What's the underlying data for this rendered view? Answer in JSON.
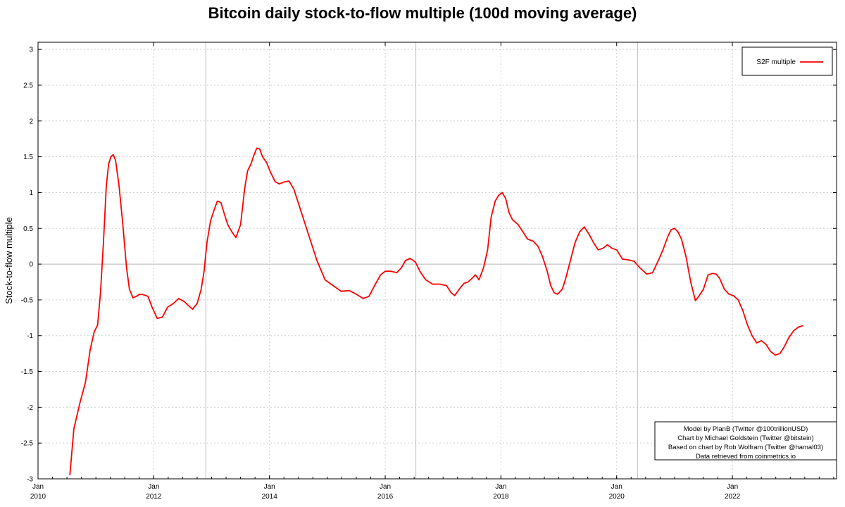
{
  "chart_data": {
    "type": "line",
    "title": "Bitcoin daily stock-to-flow multiple (100d moving average)",
    "xlabel": "",
    "ylabel": "Stock-to-flow multiple",
    "xlim": [
      2010.0,
      2023.8
    ],
    "ylim": [
      -3,
      3.1
    ],
    "grid": true,
    "legend_position": "top-right",
    "x_ticks": [
      {
        "x": 2010,
        "label_top": "Jan",
        "label_bottom": "2010"
      },
      {
        "x": 2012,
        "label_top": "Jan",
        "label_bottom": "2012"
      },
      {
        "x": 2014,
        "label_top": "Jan",
        "label_bottom": "2014"
      },
      {
        "x": 2016,
        "label_top": "Jan",
        "label_bottom": "2016"
      },
      {
        "x": 2018,
        "label_top": "Jan",
        "label_bottom": "2018"
      },
      {
        "x": 2020,
        "label_top": "Jan",
        "label_bottom": "2020"
      },
      {
        "x": 2022,
        "label_top": "Jan",
        "label_bottom": "2022"
      }
    ],
    "y_ticks": [
      {
        "value": 3,
        "label": "3"
      },
      {
        "value": 2.5,
        "label": "2.5"
      },
      {
        "value": 2,
        "label": "2"
      },
      {
        "value": 1.5,
        "label": "1.5"
      },
      {
        "value": 1,
        "label": "1"
      },
      {
        "value": 0.5,
        "label": "0.5"
      },
      {
        "value": 0,
        "label": "0"
      },
      {
        "value": -0.5,
        "label": "-0.5"
      },
      {
        "value": -1,
        "label": "-1"
      },
      {
        "value": -1.5,
        "label": "-1.5"
      },
      {
        "value": -2,
        "label": "-2"
      },
      {
        "value": -2.5,
        "label": "-2.5"
      },
      {
        "value": -3,
        "label": "-3"
      }
    ],
    "halving_lines": [
      2012.9,
      2016.53,
      2020.36
    ],
    "series": [
      {
        "name": "S2F multiple",
        "color": "#ff0000",
        "x": [
          2010.55,
          2010.62,
          2010.72,
          2010.82,
          2010.9,
          2010.97,
          2011.03,
          2011.08,
          2011.13,
          2011.18,
          2011.22,
          2011.26,
          2011.3,
          2011.34,
          2011.4,
          2011.46,
          2011.53,
          2011.58,
          2011.64,
          2011.7,
          2011.76,
          2011.83,
          2011.9,
          2011.97,
          2012.06,
          2012.15,
          2012.24,
          2012.34,
          2012.43,
          2012.52,
          2012.6,
          2012.67,
          2012.75,
          2012.82,
          2012.87,
          2012.92,
          2012.98,
          2013.04,
          2013.1,
          2013.16,
          2013.22,
          2013.28,
          2013.35,
          2013.42,
          2013.5,
          2013.57,
          2013.62,
          2013.68,
          2013.73,
          2013.78,
          2013.83,
          2013.88,
          2013.95,
          2014.02,
          2014.1,
          2014.17,
          2014.26,
          2014.34,
          2014.42,
          2014.5,
          2014.6,
          2014.7,
          2014.82,
          2014.96,
          2015.1,
          2015.24,
          2015.38,
          2015.5,
          2015.62,
          2015.72,
          2015.83,
          2015.92,
          2016.0,
          2016.1,
          2016.2,
          2016.28,
          2016.35,
          2016.43,
          2016.52,
          2016.6,
          2016.7,
          2016.82,
          2016.94,
          2017.06,
          2017.14,
          2017.2,
          2017.28,
          2017.36,
          2017.43,
          2017.5,
          2017.56,
          2017.62,
          2017.7,
          2017.77,
          2017.83,
          2017.9,
          2017.96,
          2018.02,
          2018.08,
          2018.14,
          2018.2,
          2018.3,
          2018.38,
          2018.46,
          2018.56,
          2018.64,
          2018.72,
          2018.8,
          2018.86,
          2018.92,
          2018.98,
          2019.06,
          2019.12,
          2019.2,
          2019.28,
          2019.36,
          2019.44,
          2019.52,
          2019.6,
          2019.68,
          2019.76,
          2019.84,
          2019.92,
          2020.0,
          2020.1,
          2020.2,
          2020.3,
          2020.4,
          2020.52,
          2020.62,
          2020.72,
          2020.8,
          2020.88,
          2020.94,
          2021.0,
          2021.06,
          2021.12,
          2021.2,
          2021.28,
          2021.36,
          2021.42,
          2021.5,
          2021.58,
          2021.66,
          2021.72,
          2021.78,
          2021.86,
          2021.94,
          2022.02,
          2022.1,
          2022.18,
          2022.26,
          2022.34,
          2022.42,
          2022.5,
          2022.58,
          2022.66,
          2022.74,
          2022.82,
          2022.9,
          2022.98,
          2023.06,
          2023.14,
          2023.22
        ],
        "y": [
          -2.95,
          -2.3,
          -1.95,
          -1.65,
          -1.2,
          -0.95,
          -0.85,
          -0.4,
          0.3,
          1.1,
          1.4,
          1.5,
          1.53,
          1.45,
          1.1,
          0.6,
          -0.05,
          -0.35,
          -0.47,
          -0.45,
          -0.42,
          -0.43,
          -0.45,
          -0.6,
          -0.76,
          -0.74,
          -0.6,
          -0.55,
          -0.48,
          -0.52,
          -0.58,
          -0.63,
          -0.55,
          -0.35,
          -0.1,
          0.3,
          0.6,
          0.75,
          0.88,
          0.86,
          0.7,
          0.55,
          0.45,
          0.37,
          0.55,
          1.05,
          1.3,
          1.4,
          1.52,
          1.62,
          1.61,
          1.5,
          1.42,
          1.28,
          1.15,
          1.12,
          1.15,
          1.16,
          1.05,
          0.85,
          0.6,
          0.35,
          0.05,
          -0.22,
          -0.3,
          -0.38,
          -0.37,
          -0.42,
          -0.48,
          -0.45,
          -0.28,
          -0.15,
          -0.1,
          -0.1,
          -0.12,
          -0.05,
          0.05,
          0.08,
          0.03,
          -0.1,
          -0.22,
          -0.28,
          -0.28,
          -0.3,
          -0.4,
          -0.44,
          -0.35,
          -0.27,
          -0.25,
          -0.2,
          -0.15,
          -0.22,
          -0.05,
          0.2,
          0.65,
          0.88,
          0.96,
          1.0,
          0.92,
          0.72,
          0.62,
          0.55,
          0.45,
          0.35,
          0.32,
          0.25,
          0.1,
          -0.1,
          -0.3,
          -0.4,
          -0.42,
          -0.35,
          -0.2,
          0.05,
          0.3,
          0.45,
          0.52,
          0.42,
          0.3,
          0.2,
          0.22,
          0.27,
          0.22,
          0.2,
          0.07,
          0.06,
          0.04,
          -0.05,
          -0.14,
          -0.12,
          0.05,
          0.2,
          0.38,
          0.48,
          0.5,
          0.45,
          0.35,
          0.1,
          -0.25,
          -0.51,
          -0.45,
          -0.35,
          -0.15,
          -0.13,
          -0.14,
          -0.2,
          -0.35,
          -0.42,
          -0.44,
          -0.5,
          -0.65,
          -0.85,
          -1.0,
          -1.1,
          -1.07,
          -1.12,
          -1.22,
          -1.27,
          -1.25,
          -1.15,
          -1.02,
          -0.93,
          -0.88,
          -0.86
        ]
      }
    ],
    "legend": {
      "entries": [
        "S2F multiple"
      ]
    },
    "credits": [
      "Model by PlanB (Twitter @100trillionUSD)",
      "Chart by Michael Goldstein (Twitter @bitstein)",
      "Based on chart by Rob Wolfram (Twitter @hamal03)",
      "Data retrieved from coinmetrics.io"
    ]
  }
}
